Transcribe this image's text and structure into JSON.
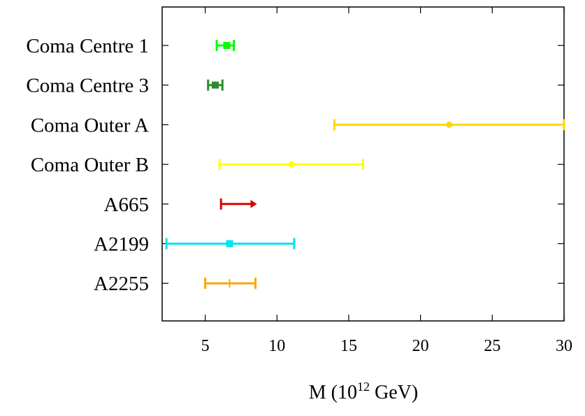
{
  "chart_data": {
    "type": "errorbar",
    "title": "",
    "xlabel": "M (10",
    "xlabel_sup": "12",
    "xlabel_tail": " GeV)",
    "xlim": [
      2,
      30
    ],
    "xticks": [
      "5",
      "10",
      "15",
      "20",
      "25",
      "30"
    ],
    "grid": false,
    "legend": "none",
    "series": [
      {
        "name": "Coma Centre 1",
        "center": 6.5,
        "low": 5.8,
        "high": 7.0,
        "color": "#00ff00",
        "marker": "square",
        "kind": "interval"
      },
      {
        "name": "Coma Centre 3",
        "center": 5.7,
        "low": 5.2,
        "high": 6.2,
        "color": "#2e8b2e",
        "marker": "square",
        "kind": "interval"
      },
      {
        "name": "Coma Outer A",
        "center": 22.0,
        "low": 14.0,
        "high": 30.0,
        "color": "#ffd700",
        "marker": "circle",
        "kind": "interval"
      },
      {
        "name": "Coma Outer B",
        "center": 11.0,
        "low": 6.0,
        "high": 16.0,
        "color": "#ffff00",
        "marker": "circle",
        "kind": "interval"
      },
      {
        "name": "A665",
        "center": null,
        "low": 6.1,
        "high": 8.6,
        "color": "#e00000",
        "marker": "none",
        "kind": "lower-limit"
      },
      {
        "name": "A2199",
        "center": 6.7,
        "low": 2.3,
        "high": 11.2,
        "color": "#00e5ee",
        "marker": "square",
        "kind": "interval"
      },
      {
        "name": "A2255",
        "center": 6.7,
        "low": 5.0,
        "high": 8.5,
        "color": "#ffa500",
        "marker": "plus",
        "kind": "interval"
      }
    ]
  }
}
